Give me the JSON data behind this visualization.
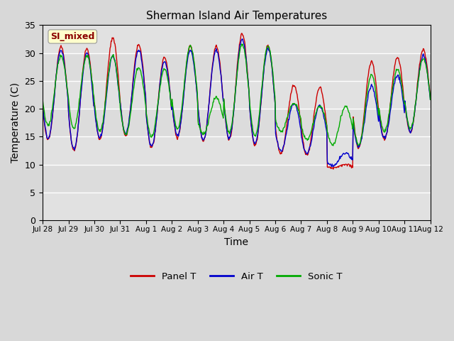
{
  "title": "Sherman Island Air Temperatures",
  "xlabel": "Time",
  "ylabel": "Temperature (C)",
  "ylim": [
    0,
    35
  ],
  "yticks": [
    0,
    5,
    10,
    15,
    20,
    25,
    30,
    35
  ],
  "label_text": "SI_mixed",
  "label_color": "#8b0000",
  "label_bg": "#ffffcc",
  "fig_bg": "#d8d8d8",
  "plot_bg": "#dcdcdc",
  "line_colors": {
    "panel": "#cc0000",
    "air": "#0000cc",
    "sonic": "#00aa00"
  },
  "legend_labels": [
    "Panel T",
    "Air T",
    "Sonic T"
  ],
  "x_tick_labels": [
    "Jul 28",
    "Jul 29",
    "Jul 30",
    "Jul 31",
    "Aug 1",
    "Aug 2",
    "Aug 3",
    "Aug 4",
    "Aug 5",
    "Aug 6",
    "Aug 7",
    "Aug 8",
    "Aug 9",
    "Aug 10",
    "Aug 11",
    "Aug 12"
  ],
  "num_days": 15,
  "pts_per_day": 48,
  "day_peaks_panel": [
    31.2,
    30.8,
    32.7,
    31.5,
    29.3,
    31.2,
    31.2,
    33.5,
    31.2,
    24.3,
    23.8,
    10.0,
    28.5,
    29.2,
    30.5
  ],
  "day_troughs_panel": [
    14.5,
    12.5,
    14.5,
    15.2,
    13.0,
    15.0,
    14.2,
    14.5,
    13.5,
    12.0,
    11.8,
    9.5,
    13.0,
    14.5,
    15.8
  ],
  "day_peaks_air": [
    30.5,
    30.0,
    29.5,
    30.5,
    28.5,
    30.5,
    30.5,
    32.5,
    30.8,
    21.0,
    20.5,
    12.0,
    24.0,
    26.0,
    29.5
  ],
  "day_troughs_air": [
    14.8,
    12.8,
    14.8,
    15.5,
    13.3,
    15.2,
    14.5,
    14.8,
    13.8,
    12.5,
    12.0,
    9.8,
    13.3,
    14.8,
    16.0
  ],
  "day_peaks_sonic": [
    29.5,
    29.5,
    29.5,
    27.5,
    27.2,
    31.2,
    22.0,
    31.5,
    31.2,
    21.0,
    20.5,
    20.5,
    26.0,
    27.0,
    29.0
  ],
  "day_troughs_sonic": [
    17.0,
    16.5,
    16.0,
    15.5,
    15.0,
    16.5,
    15.5,
    15.8,
    15.2,
    16.0,
    14.5,
    13.5,
    13.5,
    16.0,
    16.5
  ],
  "trough_hour": 5,
  "peak_hour": 14,
  "noise_std": 0.15,
  "line_width": 1.0
}
